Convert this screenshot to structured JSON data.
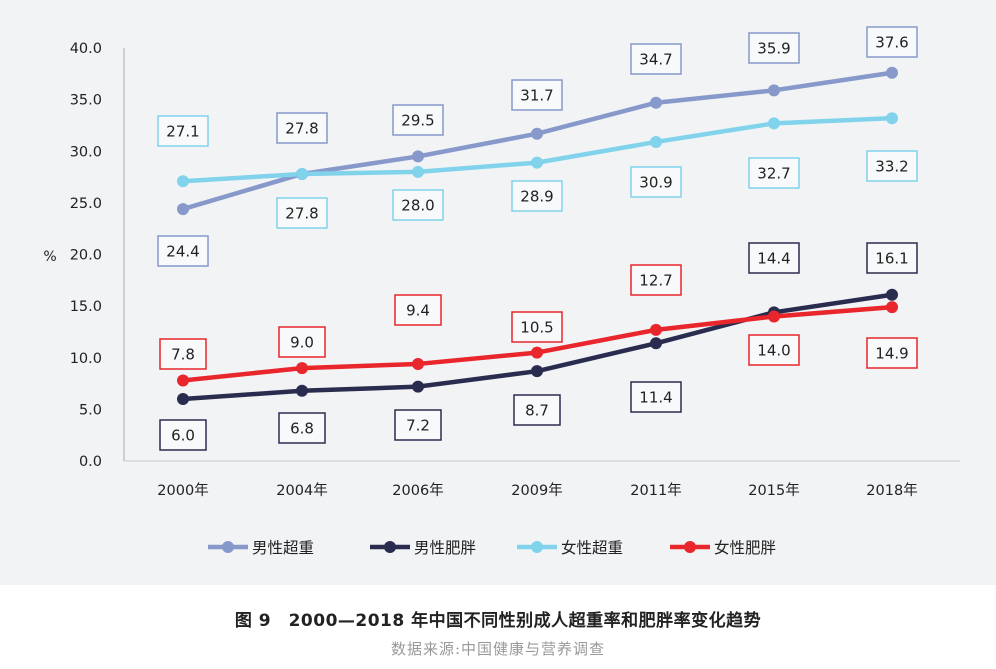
{
  "chart_data": {
    "type": "line",
    "ylabel": "%",
    "categories": [
      "2000年",
      "2004年",
      "2006年",
      "2009年",
      "2011年",
      "2015年",
      "2018年"
    ],
    "ylim": [
      0,
      40
    ],
    "yticks": [
      "0.0",
      "5.0",
      "10.0",
      "15.0",
      "20.0",
      "25.0",
      "30.0",
      "35.0",
      "40.0"
    ],
    "grid": false,
    "legend_position": "bottom",
    "series": [
      {
        "name": "男性超重",
        "color": "#8799cb",
        "values": [
          24.4,
          27.8,
          29.5,
          31.7,
          34.7,
          35.9,
          37.6
        ],
        "labels": [
          "24.4",
          "27.8",
          "29.5",
          "31.7",
          "34.7",
          "35.9",
          "37.6"
        ]
      },
      {
        "name": "男性肥胖",
        "color": "#2a2c4f",
        "values": [
          6.0,
          6.8,
          7.2,
          8.7,
          11.4,
          14.4,
          16.1
        ],
        "labels": [
          "6.0",
          "6.8",
          "7.2",
          "8.7",
          "11.4",
          "14.4",
          "16.1"
        ]
      },
      {
        "name": "女性超重",
        "color": "#80d3eb",
        "values": [
          27.1,
          27.8,
          28.0,
          28.9,
          30.9,
          32.7,
          33.2
        ],
        "labels": [
          "27.1",
          "27.8",
          "28.0",
          "28.9",
          "30.9",
          "32.7",
          "33.2"
        ]
      },
      {
        "name": "女性肥胖",
        "color": "#e8262b",
        "values": [
          7.8,
          9.0,
          9.4,
          10.5,
          12.7,
          14.0,
          14.9
        ],
        "labels": [
          "7.8",
          "9.0",
          "9.4",
          "10.5",
          "12.7",
          "14.0",
          "14.9"
        ]
      }
    ]
  },
  "caption": {
    "title": "图 9　2000—2018 年中国不同性别成人超重率和肥胖率变化趋势",
    "source": "数据来源:中国健康与营养调查"
  }
}
